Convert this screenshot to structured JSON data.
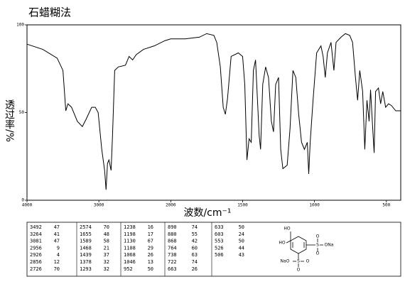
{
  "chart_data": {
    "type": "line",
    "title": "石蜡糊法",
    "x_label": "波数/cm⁻¹",
    "y_label": "透过率/%",
    "xlim": [
      4000,
      400
    ],
    "xticks": [
      4000,
      3000,
      2000,
      1500,
      1000,
      500
    ],
    "ylim": [
      0,
      100
    ],
    "yticks": [
      0,
      50,
      100
    ],
    "grid": false,
    "color": "#000000",
    "x": [
      4000,
      3780,
      3580,
      3500,
      3460,
      3430,
      3380,
      3300,
      3230,
      3180,
      3100,
      3050,
      3010,
      2960,
      2920,
      2900,
      2880,
      2860,
      2830,
      2810,
      2780,
      2730,
      2630,
      2580,
      2530,
      2480,
      2380,
      2230,
      2080,
      2000,
      1900,
      1800,
      1750,
      1700,
      1680,
      1655,
      1635,
      1620,
      1605,
      1580,
      1530,
      1500,
      1485,
      1470,
      1455,
      1440,
      1425,
      1410,
      1385,
      1375,
      1360,
      1340,
      1320,
      1300,
      1285,
      1270,
      1250,
      1235,
      1220,
      1190,
      1170,
      1150,
      1130,
      1110,
      1090,
      1070,
      1050,
      1040,
      1030,
      1010,
      985,
      955,
      940,
      925,
      910,
      885,
      865,
      850,
      815,
      785,
      755,
      735,
      715,
      700,
      685,
      665,
      650,
      635,
      620,
      610,
      595,
      585,
      575,
      555,
      540,
      525,
      505,
      485,
      465,
      435,
      400
    ],
    "values": [
      89,
      86,
      81,
      74,
      51,
      55,
      53,
      45,
      42,
      46,
      53,
      53,
      50,
      29,
      17,
      6,
      21,
      23,
      17,
      37,
      74,
      76,
      77,
      82,
      80,
      83,
      86,
      88,
      91,
      92,
      92,
      93,
      95,
      94,
      90,
      76,
      53,
      49,
      58,
      82,
      84,
      82,
      66,
      23,
      35,
      33,
      74,
      80,
      37,
      29,
      66,
      76,
      70,
      45,
      39,
      66,
      70,
      29,
      18,
      20,
      41,
      74,
      70,
      49,
      33,
      29,
      33,
      15,
      33,
      57,
      84,
      88,
      82,
      70,
      84,
      90,
      74,
      90,
      93,
      95,
      94,
      90,
      70,
      57,
      74,
      62,
      29,
      57,
      45,
      63,
      41,
      27,
      62,
      64,
      55,
      62,
      53,
      55,
      54,
      51,
      51
    ]
  },
  "peak_table": {
    "columns": [
      [
        [
          3492,
          47
        ],
        [
          3264,
          41
        ],
        [
          3081,
          47
        ],
        [
          2956,
          9
        ],
        [
          2926,
          4
        ],
        [
          2856,
          12
        ],
        [
          2726,
          70
        ]
      ],
      [
        [
          2574,
          70
        ],
        [
          1655,
          48
        ],
        [
          1589,
          58
        ],
        [
          1468,
          21
        ],
        [
          1439,
          37
        ],
        [
          1378,
          32
        ],
        [
          1293,
          32
        ]
      ],
      [
        [
          1238,
          16
        ],
        [
          1198,
          17
        ],
        [
          1130,
          67
        ],
        [
          1108,
          29
        ],
        [
          1068,
          26
        ],
        [
          1046,
          13
        ],
        [
          952,
          50
        ]
      ],
      [
        [
          890,
          74
        ],
        [
          880,
          55
        ],
        [
          868,
          42
        ],
        [
          764,
          60
        ],
        [
          738,
          63
        ],
        [
          722,
          74
        ],
        [
          663,
          26
        ]
      ],
      [
        [
          633,
          50
        ],
        [
          603,
          24
        ],
        [
          553,
          50
        ],
        [
          526,
          44
        ],
        [
          506,
          43
        ]
      ]
    ]
  },
  "structure": {
    "labels": [
      "HO",
      "HO",
      "S",
      "O",
      "O",
      "ONa",
      "NaO",
      "S",
      "O",
      "O"
    ]
  }
}
